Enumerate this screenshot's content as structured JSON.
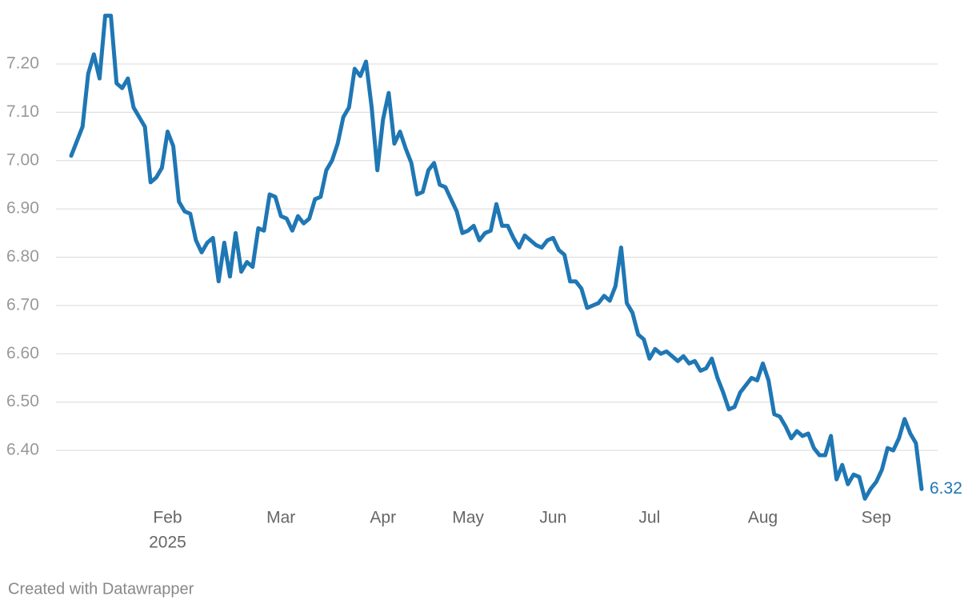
{
  "chart_data": {
    "type": "line",
    "categories": [
      null,
      null,
      null,
      null,
      null,
      null,
      null,
      null,
      null,
      null,
      null,
      null,
      null,
      null,
      null,
      null,
      null,
      "Feb",
      null,
      null,
      null,
      null,
      null,
      null,
      null,
      null,
      null,
      null,
      null,
      null,
      null,
      null,
      null,
      null,
      null,
      null,
      null,
      "Mar",
      null,
      null,
      null,
      null,
      null,
      null,
      null,
      null,
      null,
      null,
      null,
      null,
      null,
      null,
      null,
      null,
      null,
      "Apr",
      null,
      null,
      null,
      null,
      null,
      null,
      null,
      null,
      null,
      null,
      null,
      null,
      null,
      null,
      "May",
      null,
      null,
      null,
      null,
      null,
      null,
      null,
      null,
      null,
      null,
      null,
      null,
      null,
      null,
      "Jun",
      null,
      null,
      null,
      null,
      null,
      null,
      null,
      null,
      null,
      null,
      null,
      null,
      null,
      null,
      null,
      null,
      "Jul",
      null,
      null,
      null,
      null,
      null,
      null,
      null,
      null,
      null,
      null,
      null,
      null,
      null,
      null,
      null,
      null,
      null,
      null,
      null,
      "Aug",
      null,
      null,
      null,
      null,
      null,
      null,
      null,
      null,
      null,
      null,
      null,
      null,
      null,
      null,
      null,
      null,
      null,
      null,
      null,
      "Sep",
      null,
      null,
      null,
      null,
      null,
      null,
      null,
      null
    ],
    "year_label": "2025",
    "values": [
      7.01,
      7.04,
      7.07,
      7.18,
      7.22,
      7.17,
      7.3,
      7.3,
      7.16,
      7.15,
      7.17,
      7.11,
      7.09,
      7.07,
      6.955,
      6.965,
      6.985,
      7.06,
      7.03,
      6.915,
      6.895,
      6.89,
      6.835,
      6.81,
      6.83,
      6.84,
      6.75,
      6.83,
      6.76,
      6.85,
      6.77,
      6.79,
      6.78,
      6.86,
      6.855,
      6.93,
      6.925,
      6.885,
      6.88,
      6.855,
      6.885,
      6.87,
      6.88,
      6.92,
      6.925,
      6.98,
      7.0,
      7.035,
      7.09,
      7.11,
      7.19,
      7.175,
      7.205,
      7.11,
      6.98,
      7.085,
      7.14,
      7.035,
      7.06,
      7.025,
      6.995,
      6.93,
      6.935,
      6.98,
      6.995,
      6.95,
      6.945,
      6.92,
      6.895,
      6.85,
      6.855,
      6.865,
      6.835,
      6.85,
      6.855,
      6.91,
      6.865,
      6.865,
      6.84,
      6.82,
      6.845,
      6.835,
      6.825,
      6.82,
      6.835,
      6.84,
      6.815,
      6.805,
      6.75,
      6.75,
      6.735,
      6.695,
      6.7,
      6.705,
      6.72,
      6.71,
      6.74,
      6.82,
      6.705,
      6.685,
      6.64,
      6.63,
      6.59,
      6.61,
      6.6,
      6.605,
      6.595,
      6.585,
      6.595,
      6.58,
      6.585,
      6.565,
      6.57,
      6.59,
      6.55,
      6.52,
      6.485,
      6.49,
      6.52,
      6.535,
      6.55,
      6.545,
      6.58,
      6.545,
      6.475,
      6.47,
      6.45,
      6.425,
      6.44,
      6.43,
      6.435,
      6.405,
      6.39,
      6.39,
      6.43,
      6.34,
      6.37,
      6.33,
      6.35,
      6.345,
      6.3,
      6.32,
      6.335,
      6.36,
      6.405,
      6.4,
      6.425,
      6.465,
      6.435,
      6.415,
      6.32
    ],
    "color": "#1f77b4",
    "ylim": [
      6.3,
      7.3
    ],
    "yticks": [
      {
        "value": 6.4,
        "label": "6.40"
      },
      {
        "value": 6.5,
        "label": "6.50"
      },
      {
        "value": 6.6,
        "label": "6.60"
      },
      {
        "value": 6.7,
        "label": "6.70"
      },
      {
        "value": 6.8,
        "label": "6.80"
      },
      {
        "value": 6.9,
        "label": "6.90"
      },
      {
        "value": 7.0,
        "label": "7.00"
      },
      {
        "value": 7.1,
        "label": "7.10"
      },
      {
        "value": 7.2,
        "label": "7.20"
      }
    ],
    "grid": true,
    "credit": "Created with Datawrapper"
  }
}
